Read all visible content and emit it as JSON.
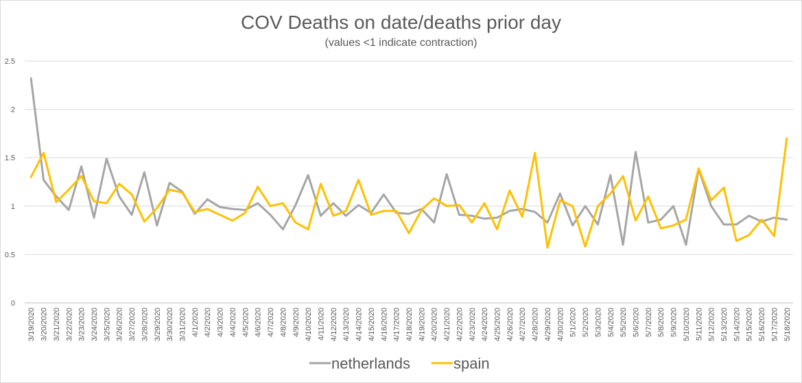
{
  "chart_data": {
    "type": "line",
    "title": "COV Deaths on date/deaths prior day",
    "subtitle": "(values <1 indicate contraction)",
    "xlabel": "",
    "ylabel": "",
    "ylim": [
      0,
      2.5
    ],
    "y_ticks": [
      "0",
      "0.5",
      "1",
      "1.5",
      "2",
      "2.5"
    ],
    "grid": true,
    "legend_position": "bottom-center",
    "categories": [
      "3/19/2020",
      "3/20/2020",
      "3/21/2020",
      "3/22/2020",
      "3/23/2020",
      "3/24/2020",
      "3/25/2020",
      "3/26/2020",
      "3/27/2020",
      "3/28/2020",
      "3/29/2020",
      "3/30/2020",
      "3/31/2020",
      "4/1/2020",
      "4/2/2020",
      "4/3/2020",
      "4/4/2020",
      "4/5/2020",
      "4/6/2020",
      "4/7/2020",
      "4/8/2020",
      "4/9/2020",
      "4/10/2020",
      "4/11/2020",
      "4/12/2020",
      "4/13/2020",
      "4/14/2020",
      "4/15/2020",
      "4/16/2020",
      "4/17/2020",
      "4/18/2020",
      "4/19/2020",
      "4/20/2020",
      "4/21/2020",
      "4/22/2020",
      "4/23/2020",
      "4/24/2020",
      "4/25/2020",
      "4/26/2020",
      "4/27/2020",
      "4/28/2020",
      "4/29/2020",
      "4/30/2020",
      "5/1/2020",
      "5/2/2020",
      "5/3/2020",
      "5/4/2020",
      "5/5/2020",
      "5/6/2020",
      "5/7/2020",
      "5/8/2020",
      "5/9/2020",
      "5/10/2020",
      "5/11/2020",
      "5/12/2020",
      "5/13/2020",
      "5/14/2020",
      "5/15/2020",
      "5/16/2020",
      "5/17/2020",
      "5/18/2020"
    ],
    "series": [
      {
        "name": "netherlands",
        "color": "#a5a5a5",
        "values": [
          2.32,
          1.27,
          1.1,
          0.96,
          1.41,
          0.88,
          1.49,
          1.1,
          0.91,
          1.35,
          0.8,
          1.24,
          1.15,
          0.92,
          1.07,
          0.99,
          0.97,
          0.96,
          1.03,
          0.91,
          0.76,
          1.01,
          1.32,
          0.9,
          1.03,
          0.9,
          1.01,
          0.93,
          1.12,
          0.93,
          0.92,
          0.97,
          0.83,
          1.33,
          0.91,
          0.9,
          0.87,
          0.88,
          0.95,
          0.97,
          0.94,
          0.83,
          1.13,
          0.8,
          1.0,
          0.81,
          1.32,
          0.6,
          1.56,
          0.83,
          0.86,
          1.0,
          0.6,
          1.38,
          1.0,
          0.81,
          0.81,
          0.9,
          0.84,
          0.88,
          0.86
        ]
      },
      {
        "name": "spain",
        "color": "#ffc000",
        "values": [
          1.3,
          1.55,
          1.04,
          1.17,
          1.31,
          1.05,
          1.03,
          1.23,
          1.12,
          0.84,
          0.98,
          1.17,
          1.14,
          0.94,
          0.97,
          0.91,
          0.85,
          0.93,
          1.2,
          1.0,
          1.03,
          0.83,
          0.76,
          1.23,
          0.9,
          0.95,
          1.27,
          0.91,
          0.95,
          0.95,
          0.72,
          0.96,
          1.08,
          1.0,
          1.01,
          0.83,
          1.03,
          0.76,
          1.16,
          0.89,
          1.55,
          0.57,
          1.06,
          1.0,
          0.58,
          1.0,
          1.13,
          1.31,
          0.85,
          1.1,
          0.77,
          0.8,
          0.86,
          1.39,
          1.06,
          1.19,
          0.64,
          0.7,
          0.86,
          0.69,
          1.7
        ]
      }
    ]
  }
}
